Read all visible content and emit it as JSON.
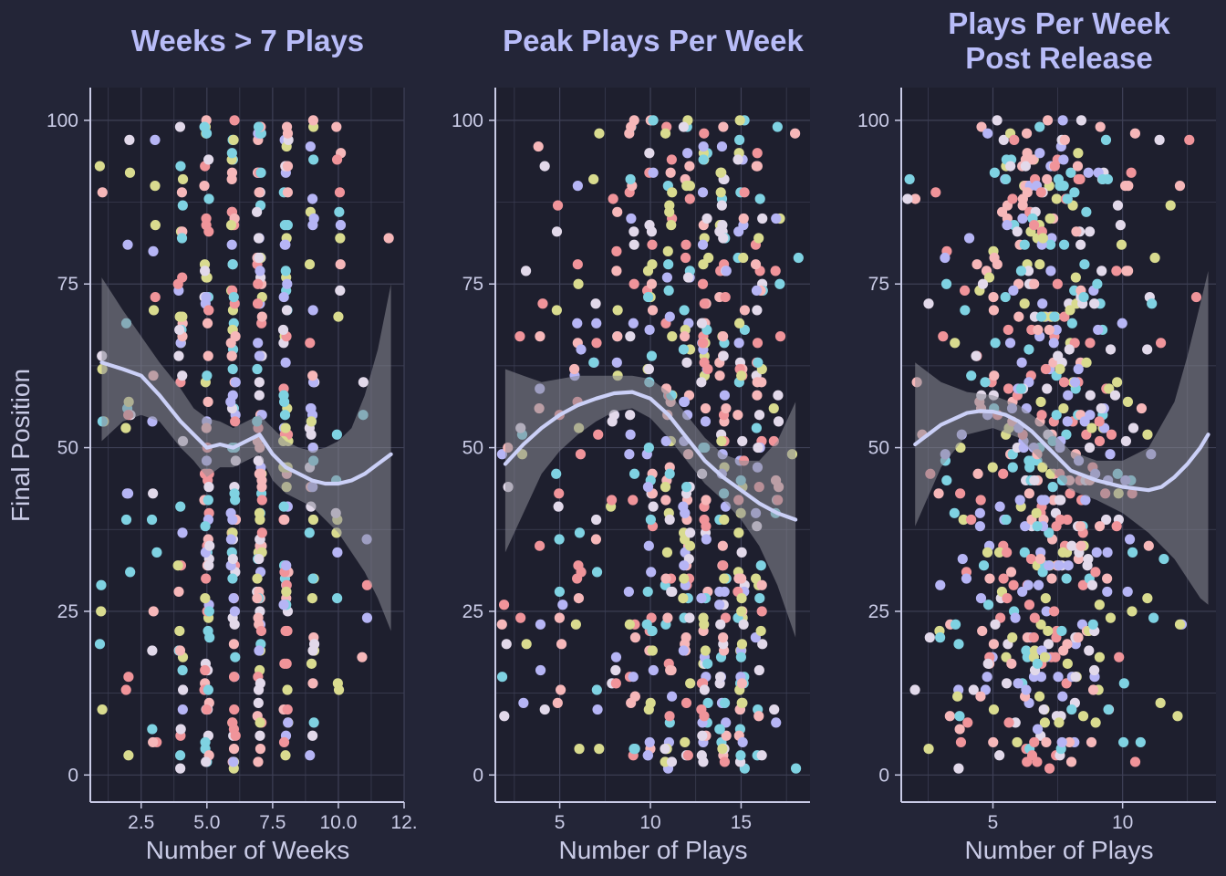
{
  "y_axis_title": "Final Position",
  "colors": {
    "background": "#232537",
    "panel": "#1e1f2e",
    "grid": "#3e4056",
    "axis": "#c9cbe6",
    "title": "#b8bcf8",
    "smooth_line": "#cbd0f7",
    "ribbon": "#8a8b95",
    "point_palette": [
      "#f0949a",
      "#f6b7b9",
      "#7fd2e2",
      "#d9db8f",
      "#b6b5f5",
      "#e2d9ea"
    ]
  },
  "chart_data": [
    {
      "type": "scatter",
      "title": "Weeks > 7 Plays",
      "xlabel": "Number of Weeks",
      "ylabel": "Final Position",
      "xlim": [
        0.6,
        12.5
      ],
      "ylim": [
        -4,
        105
      ],
      "x_ticks": [
        2.5,
        5.0,
        7.5,
        10.0,
        12.5
      ],
      "x_tick_labels": [
        "2.5",
        "5.0",
        "7.5",
        "10.0",
        "12."
      ],
      "y_ticks": [
        0,
        25,
        50,
        75,
        100
      ],
      "y_tick_labels": [
        "0",
        "25",
        "50",
        "75",
        "100"
      ],
      "grid": true,
      "x_integer": true,
      "points_per_x": [
        [
          1,
          10
        ],
        [
          2,
          16
        ],
        [
          3,
          16
        ],
        [
          4,
          40
        ],
        [
          5,
          75
        ],
        [
          6,
          80
        ],
        [
          7,
          95
        ],
        [
          8,
          72
        ],
        [
          9,
          42
        ],
        [
          10,
          20
        ],
        [
          11,
          6
        ],
        [
          12,
          1
        ]
      ],
      "smooth": [
        [
          1,
          63
        ],
        [
          1.8,
          62
        ],
        [
          2.5,
          61
        ],
        [
          3.2,
          58
        ],
        [
          4,
          54
        ],
        [
          4.5,
          52
        ],
        [
          5,
          50
        ],
        [
          5.5,
          50.5
        ],
        [
          6,
          50
        ],
        [
          6.5,
          51
        ],
        [
          7,
          52
        ],
        [
          7.5,
          49
        ],
        [
          8,
          47
        ],
        [
          8.5,
          46
        ],
        [
          9,
          45
        ],
        [
          9.5,
          44.5
        ],
        [
          10,
          44.5
        ],
        [
          10.5,
          45
        ],
        [
          11,
          46
        ],
        [
          11.5,
          47.5
        ],
        [
          12,
          49
        ]
      ],
      "ribbon_upper": [
        [
          1,
          76
        ],
        [
          1.8,
          71
        ],
        [
          2.5,
          67
        ],
        [
          3.2,
          63
        ],
        [
          4,
          59
        ],
        [
          4.5,
          56
        ],
        [
          5,
          54.5
        ],
        [
          5.5,
          54
        ],
        [
          6,
          53
        ],
        [
          6.5,
          54
        ],
        [
          7,
          55
        ],
        [
          7.5,
          53
        ],
        [
          8,
          51
        ],
        [
          8.5,
          50
        ],
        [
          9,
          49.5
        ],
        [
          9.5,
          50
        ],
        [
          10,
          51
        ],
        [
          10.5,
          53
        ],
        [
          11,
          58
        ],
        [
          11.5,
          65
        ],
        [
          12,
          75
        ]
      ],
      "ribbon_lower": [
        [
          1,
          51
        ],
        [
          1.8,
          54
        ],
        [
          2.5,
          55
        ],
        [
          3.2,
          54
        ],
        [
          4,
          50
        ],
        [
          4.5,
          48
        ],
        [
          5,
          45.5
        ],
        [
          5.5,
          47
        ],
        [
          6,
          47
        ],
        [
          6.5,
          48
        ],
        [
          7,
          49
        ],
        [
          7.5,
          45
        ],
        [
          8,
          43
        ],
        [
          8.5,
          42
        ],
        [
          9,
          41
        ],
        [
          9.5,
          39
        ],
        [
          10,
          37
        ],
        [
          10.5,
          34
        ],
        [
          11,
          31
        ],
        [
          11.5,
          27
        ],
        [
          12,
          22
        ]
      ]
    },
    {
      "type": "scatter",
      "title": "Peak Plays Per Week",
      "xlabel": "Number of Plays",
      "ylabel": "Final Position",
      "xlim": [
        1.5,
        18.8
      ],
      "ylim": [
        -4,
        105
      ],
      "x_ticks": [
        5,
        10,
        15
      ],
      "x_tick_labels": [
        "5",
        "10",
        "15"
      ],
      "y_ticks": [
        0,
        25,
        50,
        75,
        100
      ],
      "y_tick_labels": [
        "0",
        "25",
        "50",
        "75",
        "100"
      ],
      "grid": true,
      "x_integer": true,
      "points_per_x": [
        [
          2,
          8
        ],
        [
          3,
          8
        ],
        [
          4,
          10
        ],
        [
          5,
          14
        ],
        [
          6,
          18
        ],
        [
          7,
          14
        ],
        [
          8,
          18
        ],
        [
          9,
          30
        ],
        [
          10,
          48
        ],
        [
          11,
          55
        ],
        [
          12,
          62
        ],
        [
          13,
          70
        ],
        [
          14,
          72
        ],
        [
          15,
          68
        ],
        [
          16,
          45
        ],
        [
          17,
          18
        ],
        [
          18,
          4
        ]
      ],
      "smooth": [
        [
          2,
          47.5
        ],
        [
          3,
          50.5
        ],
        [
          4,
          53
        ],
        [
          5,
          55
        ],
        [
          6,
          56.5
        ],
        [
          7,
          57.5
        ],
        [
          8,
          58.3
        ],
        [
          9,
          58.5
        ],
        [
          10,
          57.5
        ],
        [
          11,
          55
        ],
        [
          12,
          51.5
        ],
        [
          13,
          48
        ],
        [
          14,
          45.5
        ],
        [
          15,
          43.5
        ],
        [
          16,
          41.5
        ],
        [
          17,
          40
        ],
        [
          18,
          39
        ]
      ],
      "ribbon_upper": [
        [
          2,
          62
        ],
        [
          3,
          61
        ],
        [
          4,
          60
        ],
        [
          5,
          60.5
        ],
        [
          6,
          61
        ],
        [
          7,
          61
        ],
        [
          8,
          61
        ],
        [
          9,
          61
        ],
        [
          10,
          60.5
        ],
        [
          11,
          58.5
        ],
        [
          12,
          55
        ],
        [
          13,
          51.5
        ],
        [
          14,
          49
        ],
        [
          15,
          48
        ],
        [
          16,
          48
        ],
        [
          17,
          51
        ],
        [
          18,
          57
        ]
      ],
      "ribbon_lower": [
        [
          2,
          34
        ],
        [
          3,
          40
        ],
        [
          4,
          46
        ],
        [
          5,
          49.5
        ],
        [
          6,
          52
        ],
        [
          7,
          54
        ],
        [
          8,
          55.5
        ],
        [
          9,
          56
        ],
        [
          10,
          54.5
        ],
        [
          11,
          51.5
        ],
        [
          12,
          48
        ],
        [
          13,
          44.5
        ],
        [
          14,
          42
        ],
        [
          15,
          39
        ],
        [
          16,
          35
        ],
        [
          17,
          29
        ],
        [
          18,
          21
        ]
      ]
    },
    {
      "type": "scatter",
      "title": "Plays Per Week\nPost Release",
      "xlabel": "Number of Plays",
      "ylabel": "Final Position",
      "xlim": [
        1.5,
        13.6
      ],
      "ylim": [
        -4,
        105
      ],
      "x_ticks": [
        5,
        10
      ],
      "x_tick_labels": [
        "5",
        "10"
      ],
      "y_ticks": [
        0,
        25,
        50,
        75,
        100
      ],
      "y_tick_labels": [
        "0",
        "25",
        "50",
        "75",
        "100"
      ],
      "grid": true,
      "x_integer": false,
      "x_bands": [
        [
          2,
          10
        ],
        [
          3,
          18
        ],
        [
          4,
          30
        ],
        [
          5,
          60
        ],
        [
          6,
          110
        ],
        [
          7,
          130
        ],
        [
          8,
          110
        ],
        [
          9,
          70
        ],
        [
          10,
          35
        ],
        [
          11,
          14
        ],
        [
          12,
          6
        ],
        [
          13,
          2
        ]
      ],
      "smooth": [
        [
          2,
          50.5
        ],
        [
          3,
          53.5
        ],
        [
          4,
          55.3
        ],
        [
          4.5,
          55.6
        ],
        [
          5,
          55.5
        ],
        [
          5.5,
          55
        ],
        [
          6,
          54
        ],
        [
          6.5,
          52.5
        ],
        [
          7,
          50.5
        ],
        [
          7.5,
          48.5
        ],
        [
          8,
          46.5
        ],
        [
          9,
          45
        ],
        [
          10,
          44
        ],
        [
          11,
          43.5
        ],
        [
          11.5,
          44
        ],
        [
          12,
          45.5
        ],
        [
          12.5,
          47.5
        ],
        [
          13,
          50
        ],
        [
          13.3,
          52
        ]
      ],
      "ribbon_upper": [
        [
          2,
          63
        ],
        [
          3,
          60
        ],
        [
          4,
          58.5
        ],
        [
          5,
          58
        ],
        [
          6,
          56.5
        ],
        [
          7,
          53.5
        ],
        [
          8,
          49.5
        ],
        [
          9,
          48
        ],
        [
          10,
          48
        ],
        [
          11,
          50
        ],
        [
          12,
          57
        ],
        [
          12.5,
          64
        ],
        [
          13,
          72
        ],
        [
          13.3,
          77
        ]
      ],
      "ribbon_lower": [
        [
          2,
          38
        ],
        [
          3,
          47
        ],
        [
          4,
          52
        ],
        [
          5,
          53
        ],
        [
          6,
          51.5
        ],
        [
          7,
          47.5
        ],
        [
          8,
          43.5
        ],
        [
          9,
          42
        ],
        [
          10,
          40
        ],
        [
          11,
          37
        ],
        [
          12,
          33
        ],
        [
          12.5,
          30
        ],
        [
          13,
          27
        ],
        [
          13.3,
          26
        ]
      ]
    }
  ]
}
